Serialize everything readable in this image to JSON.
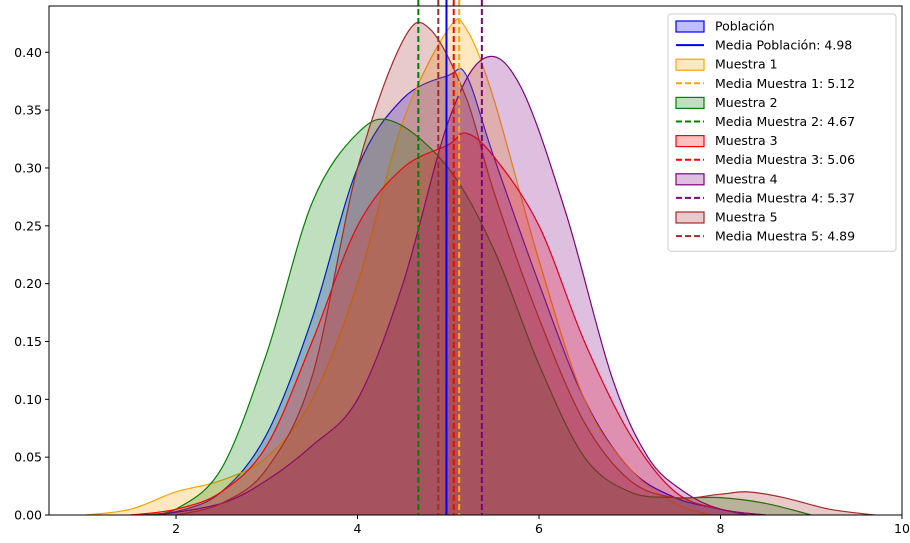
{
  "chart_data": {
    "type": "area",
    "title": "",
    "xlabel": "",
    "ylabel": "",
    "xlim": [
      0.6,
      10.0
    ],
    "ylim": [
      0.0,
      0.44
    ],
    "xticks": [
      2,
      4,
      6,
      8,
      10
    ],
    "yticks": [
      0.0,
      0.05,
      0.1,
      0.15,
      0.2,
      0.25,
      0.3,
      0.35,
      0.4
    ],
    "grid": false,
    "legend_position": "top-right",
    "series": [
      {
        "name": "Población",
        "color": "#0000ff",
        "mean_label": "Media Población: 4.98",
        "mean": 4.98,
        "line_style": "solid",
        "x": [
          1.5,
          2.0,
          2.5,
          3.0,
          3.5,
          4.0,
          4.5,
          5.0,
          5.2,
          5.5,
          6.0,
          6.5,
          7.0,
          7.5,
          8.0,
          8.3
        ],
        "y": [
          0.0,
          0.003,
          0.02,
          0.07,
          0.17,
          0.3,
          0.36,
          0.38,
          0.38,
          0.31,
          0.2,
          0.1,
          0.04,
          0.015,
          0.005,
          0.0
        ]
      },
      {
        "name": "Muestra 1",
        "color": "#ffa500",
        "mean_label": "Media Muestra 1: 5.12",
        "mean": 5.12,
        "line_style": "dashed",
        "x": [
          1.0,
          1.5,
          2.0,
          2.5,
          3.0,
          3.5,
          4.0,
          4.5,
          5.0,
          5.2,
          5.5,
          6.0,
          6.5,
          7.0,
          7.5,
          7.9
        ],
        "y": [
          0.0,
          0.005,
          0.02,
          0.03,
          0.05,
          0.1,
          0.2,
          0.34,
          0.42,
          0.42,
          0.36,
          0.22,
          0.1,
          0.04,
          0.01,
          0.0
        ]
      },
      {
        "name": "Muestra 2",
        "color": "#008000",
        "mean_label": "Media Muestra 2: 4.67",
        "mean": 4.67,
        "line_style": "dashed",
        "x": [
          1.7,
          2.0,
          2.5,
          3.0,
          3.5,
          4.0,
          4.4,
          5.0,
          5.5,
          6.0,
          6.5,
          7.0,
          7.5,
          8.0,
          8.5,
          9.0
        ],
        "y": [
          0.0,
          0.005,
          0.04,
          0.14,
          0.27,
          0.33,
          0.34,
          0.3,
          0.23,
          0.13,
          0.05,
          0.02,
          0.015,
          0.015,
          0.01,
          0.0
        ]
      },
      {
        "name": "Muestra 3",
        "color": "#ff0000",
        "mean_label": "Media Muestra 3: 5.06",
        "mean": 5.06,
        "line_style": "dashed",
        "x": [
          1.5,
          2.0,
          2.5,
          3.0,
          3.5,
          4.0,
          4.5,
          5.0,
          5.2,
          5.5,
          6.0,
          6.5,
          7.0,
          7.5,
          8.0,
          8.5
        ],
        "y": [
          0.0,
          0.005,
          0.02,
          0.06,
          0.15,
          0.25,
          0.3,
          0.32,
          0.33,
          0.31,
          0.25,
          0.15,
          0.07,
          0.02,
          0.005,
          0.0
        ]
      },
      {
        "name": "Muestra 4",
        "color": "#800080",
        "mean_label": "Media Muestra 4: 5.37",
        "mean": 5.37,
        "line_style": "dashed",
        "x": [
          1.8,
          2.5,
          3.0,
          3.5,
          4.0,
          4.5,
          5.0,
          5.4,
          5.8,
          6.3,
          6.8,
          7.2,
          7.6,
          8.0,
          8.5
        ],
        "y": [
          0.0,
          0.01,
          0.03,
          0.06,
          0.1,
          0.2,
          0.34,
          0.395,
          0.37,
          0.26,
          0.12,
          0.05,
          0.02,
          0.005,
          0.0
        ]
      },
      {
        "name": "Muestra 5",
        "color": "#a52a2a",
        "mean_label": "Media Muestra 5: 4.89",
        "mean": 4.89,
        "line_style": "dashed",
        "x": [
          2.0,
          2.5,
          3.0,
          3.5,
          4.0,
          4.5,
          4.8,
          5.2,
          5.5,
          6.0,
          6.5,
          7.0,
          7.5,
          8.0,
          8.3,
          8.7,
          9.2,
          9.7
        ],
        "y": [
          0.0,
          0.01,
          0.04,
          0.12,
          0.3,
          0.41,
          0.42,
          0.36,
          0.28,
          0.17,
          0.08,
          0.03,
          0.015,
          0.018,
          0.02,
          0.015,
          0.005,
          0.0
        ]
      }
    ]
  }
}
